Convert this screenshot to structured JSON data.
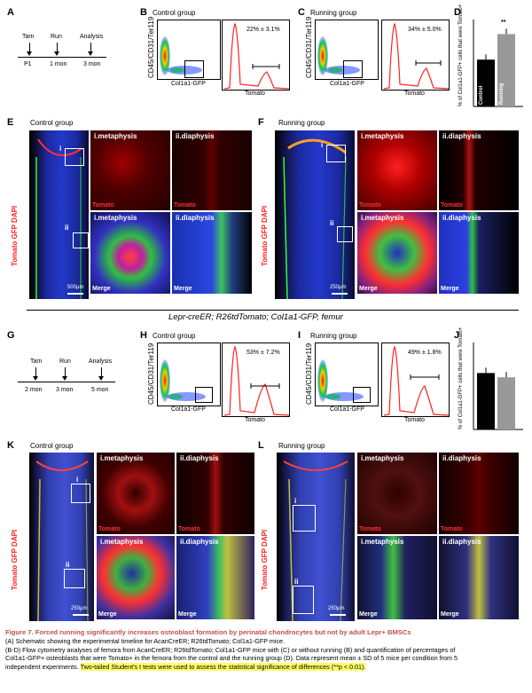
{
  "panels": {
    "A": {
      "letter": "A",
      "steps": [
        "Tam",
        "Run",
        "Analysis"
      ],
      "times": [
        "P1",
        "1 mon",
        "3 mon"
      ]
    },
    "B": {
      "letter": "B",
      "group": "Control group",
      "stat": "22% ± 3.1%",
      "ylabel": "CD45/CD31/Ter119",
      "xlabel": "Col1a1-GFP",
      "hist_xlabel": "Tomato"
    },
    "C": {
      "letter": "C",
      "group": "Running group",
      "stat": "34% ± 5.0%",
      "ylabel": "CD45/CD31/Ter119",
      "xlabel": "Col1a1-GFP",
      "hist_xlabel": "Tomato"
    },
    "D": {
      "letter": "D",
      "ylabel": "% of Col1a1-GFP+ cells that were Tomato+",
      "sig": "**",
      "bars": [
        {
          "label": "Control",
          "value": 22,
          "color": "#000000"
        },
        {
          "label": "Running",
          "value": 34,
          "color": "#999999"
        }
      ],
      "ylim": [
        0,
        40
      ]
    },
    "E": {
      "letter": "E",
      "group": "Control group",
      "side": "Tomato GFP DAPI",
      "ins": [
        "i.metaphysis",
        "ii.diaphysis",
        "i.metaphysis",
        "ii.diaphysis"
      ],
      "tomato": "Tomato",
      "merge": "Merge",
      "scale": "500μm",
      "roi1": "i",
      "roi2": "ii"
    },
    "F": {
      "letter": "F",
      "group": "Running group",
      "side": "Tomato GFP DAPI",
      "ins": [
        "i.metaphysis",
        "ii.diaphysis",
        "i.metaphysis",
        "ii.diaphysis"
      ],
      "tomato": "Tomato",
      "merge": "Merge",
      "scale": "250μm",
      "roi1": "i",
      "roi2": "ii"
    },
    "subtitle": "Lepr-creER; R26tdTomato; Col1a1-GFP, femur",
    "G": {
      "letter": "G",
      "steps": [
        "Tam",
        "Run",
        "Analysis"
      ],
      "times": [
        "2 mon",
        "3 mon",
        "5 mon"
      ]
    },
    "H": {
      "letter": "H",
      "group": "Control group",
      "stat": "53% ± 7.2%",
      "ylabel": "CD45/CD31/Ter119",
      "xlabel": "Col1a1-GFP",
      "hist_xlabel": "Tomato"
    },
    "I": {
      "letter": "I",
      "group": "Running group",
      "stat": "49% ± 1.8%",
      "ylabel": "CD45/CD31/Ter119",
      "xlabel": "Col1a1-GFP",
      "hist_xlabel": "Tomato"
    },
    "J": {
      "letter": "J",
      "ylabel": "% of Col1a1-GFP+ cells that were Tomato+",
      "bars": [
        {
          "label": "Control",
          "value": 53,
          "color": "#000000"
        },
        {
          "label": "Running",
          "value": 49,
          "color": "#999999"
        }
      ],
      "ylim": [
        0,
        80
      ]
    },
    "K": {
      "letter": "K",
      "group": "Control group",
      "side": "Tomato GFP DAPI",
      "ins": [
        "i.metaphysis",
        "ii.diaphysis",
        "i.metaphysis",
        "ii.diaphysis"
      ],
      "tomato": "Tomato",
      "merge": "Merge",
      "scale": "250μm",
      "roi1": "i",
      "roi2": "ii"
    },
    "L": {
      "letter": "L",
      "group": "Running group",
      "side": "Tomato GFP DAPI",
      "ins": [
        "i.metaphysis",
        "ii.diaphysis",
        "i.metaphysis",
        "ii.diaphysis"
      ],
      "tomato": "Tomato",
      "merge": "Merge",
      "scale": "250μm",
      "roi1": "i",
      "roi2": "ii"
    }
  },
  "caption": {
    "title": "Figure 7.  Forced running significantly increases osteoblast formation by perinatal chondrocytes but not by adult Lepr+ BMSCs",
    "line1": "(A) Schematic showing the experimental timeline for AcanCreER; R26tdTomato; Col1a1-GFP mice.",
    "line2": "(B-D) Flow cytometry analyses of femora from AcanCreER; R26tdTomato; Col1a1-GFP mice with (C) or without running (B) and quantification of percentages of",
    "line3": "Col1a1-GFP+ osteoblasts that were Tomato+ in the femora from the control and the running group (D). Data represent mean ± SD of 5 mice per condition from 5",
    "line4": "independent experiments.",
    "highlight": "Two-tailed Student's t tests were used to assess the statistical significance of differences (**p < 0.01)."
  },
  "colors": {
    "tomato": "#ff2020",
    "gfp": "#30ff30",
    "dapi": "#2040ff",
    "caption_title": "#c0504d",
    "highlight": "#ffff66"
  }
}
